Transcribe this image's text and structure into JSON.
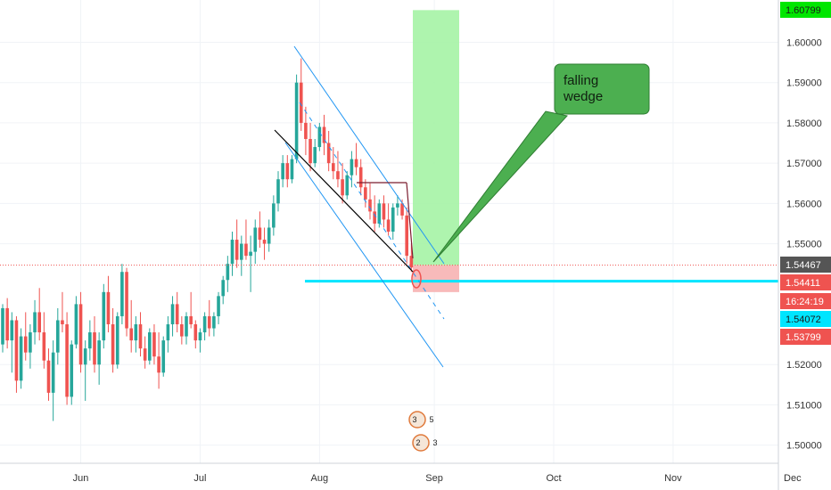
{
  "chart_data": {
    "type": "candlestick",
    "y_axis": {
      "ylim": [
        1.4955,
        1.6105
      ],
      "tick_labels": [
        "1.60000",
        "1.59000",
        "1.58000",
        "1.57000",
        "1.56000",
        "1.55000",
        "1.52000",
        "1.51000",
        "1.50000"
      ],
      "tick_values": [
        1.6,
        1.59,
        1.58,
        1.57,
        1.56,
        1.55,
        1.52,
        1.51,
        1.5
      ]
    },
    "x_axis": {
      "tick_labels": [
        "Jun",
        "Jul",
        "Aug",
        "Sep",
        "Oct",
        "Nov",
        "Dec"
      ],
      "tick_index": [
        17,
        43,
        69,
        94,
        120,
        146,
        172
      ]
    },
    "candles": [
      [
        1.525,
        1.535,
        1.523,
        1.534
      ],
      [
        1.534,
        1.5365,
        1.524,
        1.526
      ],
      [
        1.526,
        1.533,
        1.518,
        1.531
      ],
      [
        1.531,
        1.532,
        1.513,
        1.516
      ],
      [
        1.516,
        1.529,
        1.514,
        1.527
      ],
      [
        1.527,
        1.533,
        1.521,
        1.523
      ],
      [
        1.523,
        1.53,
        1.519,
        1.528
      ],
      [
        1.528,
        1.536,
        1.525,
        1.533
      ],
      [
        1.533,
        1.539,
        1.526,
        1.528
      ],
      [
        1.528,
        1.533,
        1.519,
        1.521
      ],
      [
        1.521,
        1.524,
        1.511,
        1.513
      ],
      [
        1.513,
        1.526,
        1.506,
        1.523
      ],
      [
        1.523,
        1.534,
        1.52,
        1.531
      ],
      [
        1.531,
        1.538,
        1.528,
        1.53
      ],
      [
        1.53,
        1.533,
        1.51,
        1.512
      ],
      [
        1.512,
        1.526,
        1.51,
        1.525
      ],
      [
        1.525,
        1.537,
        1.524,
        1.535
      ],
      [
        1.535,
        1.538,
        1.518,
        1.52
      ],
      [
        1.52,
        1.526,
        1.511,
        1.524
      ],
      [
        1.524,
        1.531,
        1.521,
        1.528
      ],
      [
        1.528,
        1.532,
        1.518,
        1.52
      ],
      [
        1.52,
        1.528,
        1.515,
        1.526
      ],
      [
        1.526,
        1.54,
        1.524,
        1.538
      ],
      [
        1.538,
        1.542,
        1.528,
        1.53
      ],
      [
        1.53,
        1.534,
        1.518,
        1.52
      ],
      [
        1.52,
        1.533,
        1.519,
        1.532
      ],
      [
        1.532,
        1.545,
        1.53,
        1.543
      ],
      [
        1.543,
        1.544,
        1.527,
        1.529
      ],
      [
        1.529,
        1.536,
        1.523,
        1.526
      ],
      [
        1.526,
        1.532,
        1.523,
        1.53
      ],
      [
        1.53,
        1.533,
        1.522,
        1.524
      ],
      [
        1.524,
        1.527,
        1.519,
        1.521
      ],
      [
        1.521,
        1.529,
        1.52,
        1.528
      ],
      [
        1.528,
        1.53,
        1.52,
        1.522
      ],
      [
        1.522,
        1.528,
        1.514,
        1.518
      ],
      [
        1.518,
        1.527,
        1.517,
        1.526
      ],
      [
        1.526,
        1.532,
        1.523,
        1.53
      ],
      [
        1.53,
        1.537,
        1.527,
        1.535
      ],
      [
        1.535,
        1.538,
        1.528,
        1.53
      ],
      [
        1.53,
        1.532,
        1.525,
        1.527
      ],
      [
        1.527,
        1.533,
        1.525,
        1.532
      ],
      [
        1.532,
        1.538,
        1.529,
        1.53
      ],
      [
        1.53,
        1.531,
        1.524,
        1.526
      ],
      [
        1.526,
        1.529,
        1.523,
        1.528
      ],
      [
        1.528,
        1.533,
        1.526,
        1.532
      ],
      [
        1.532,
        1.536,
        1.527,
        1.529
      ],
      [
        1.529,
        1.533,
        1.527,
        1.532
      ],
      [
        1.532,
        1.538,
        1.53,
        1.537
      ],
      [
        1.537,
        1.542,
        1.535,
        1.541
      ],
      [
        1.541,
        1.547,
        1.538,
        1.545
      ],
      [
        1.545,
        1.553,
        1.542,
        1.551
      ],
      [
        1.551,
        1.556,
        1.544,
        1.546
      ],
      [
        1.546,
        1.552,
        1.542,
        1.55
      ],
      [
        1.55,
        1.556,
        1.546,
        1.547
      ],
      [
        1.547,
        1.552,
        1.538,
        1.548
      ],
      [
        1.548,
        1.556,
        1.545,
        1.554
      ],
      [
        1.554,
        1.558,
        1.549,
        1.551
      ],
      [
        1.551,
        1.554,
        1.546,
        1.55
      ],
      [
        1.55,
        1.556,
        1.548,
        1.554
      ],
      [
        1.554,
        1.562,
        1.552,
        1.56
      ],
      [
        1.56,
        1.568,
        1.558,
        1.566
      ],
      [
        1.566,
        1.572,
        1.564,
        1.57
      ],
      [
        1.57,
        1.572,
        1.564,
        1.566
      ],
      [
        1.566,
        1.572,
        1.565,
        1.571
      ],
      [
        1.571,
        1.592,
        1.57,
        1.59
      ],
      [
        1.59,
        1.596,
        1.578,
        1.58
      ],
      [
        1.58,
        1.584,
        1.572,
        1.576
      ],
      [
        1.576,
        1.58,
        1.568,
        1.57
      ],
      [
        1.57,
        1.576,
        1.569,
        1.574
      ],
      [
        1.574,
        1.58,
        1.573,
        1.579
      ],
      [
        1.579,
        1.582,
        1.572,
        1.575
      ],
      [
        1.575,
        1.578,
        1.568,
        1.57
      ],
      [
        1.57,
        1.574,
        1.566,
        1.568
      ],
      [
        1.568,
        1.573,
        1.564,
        1.566
      ],
      [
        1.566,
        1.57,
        1.56,
        1.562
      ],
      [
        1.562,
        1.568,
        1.561,
        1.567
      ],
      [
        1.567,
        1.573,
        1.564,
        1.571
      ],
      [
        1.571,
        1.575,
        1.567,
        1.569
      ],
      [
        1.569,
        1.571,
        1.562,
        1.564
      ],
      [
        1.564,
        1.566,
        1.559,
        1.561
      ],
      [
        1.561,
        1.565,
        1.556,
        1.558
      ],
      [
        1.558,
        1.562,
        1.553,
        1.555
      ],
      [
        1.555,
        1.561,
        1.554,
        1.56
      ],
      [
        1.56,
        1.562,
        1.554,
        1.556
      ],
      [
        1.556,
        1.56,
        1.552,
        1.553
      ],
      [
        1.553,
        1.56,
        1.551,
        1.559
      ],
      [
        1.559,
        1.562,
        1.557,
        1.56
      ],
      [
        1.56,
        1.561,
        1.556,
        1.557
      ],
      [
        1.557,
        1.559,
        1.545,
        1.547
      ],
      [
        1.547,
        1.55,
        1.543,
        1.5441
      ]
    ]
  },
  "annotations": {
    "callout_text_line1": "falling",
    "callout_text_line2": "wedge",
    "callout_color": "#4caf50",
    "target_zone_color": "#a5f3a5",
    "stop_zone_color": "#f7b3b3",
    "support_line_color": "#00e5ff",
    "channel_line_color": "#2196f3",
    "wedge_line_color": "#000000",
    "support_level": 1.5407,
    "dotted_level": 1.54467
  },
  "price_badges": [
    {
      "label": "1.60799",
      "bg": "#00e600",
      "fg": "#1a1a1a",
      "value": 1.60799
    },
    {
      "label": "1.54467",
      "bg": "#555555",
      "fg": "#ffffff",
      "value": 1.54467
    },
    {
      "label": "1.54411",
      "bg": "#ef5350",
      "fg": "#ffffff",
      "value": 1.54411
    },
    {
      "label": "16:24:19",
      "bg": "#ef5350",
      "fg": "#ffffff",
      "value": 1.54411
    },
    {
      "label": "1.54072",
      "bg": "#00e5ff",
      "fg": "#1a1a1a",
      "value": 1.54072
    },
    {
      "label": "1.53799",
      "bg": "#ef5350",
      "fg": "#ffffff",
      "value": 1.53799
    }
  ],
  "events": [
    {
      "label": "3",
      "label2": "5"
    },
    {
      "label": "2",
      "label2": "3"
    }
  ],
  "colors": {
    "up_candle": "#26a69a",
    "down_candle": "#ef5350",
    "grid": "#f0f3f7",
    "axis_border": "#cfd3d9"
  }
}
